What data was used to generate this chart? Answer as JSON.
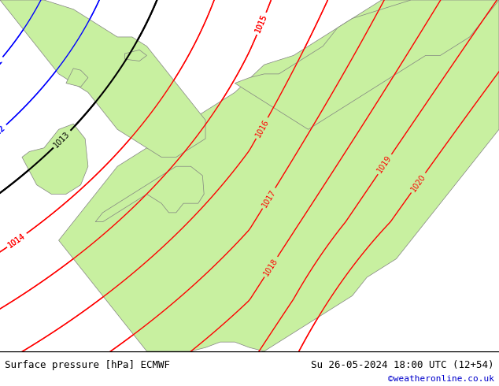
{
  "title_left": "Surface pressure [hPa] ECMWF",
  "title_right": "Su 26-05-2024 18:00 UTC (12+54)",
  "credit": "©weatheronline.co.uk",
  "credit_color": "#0000cc",
  "land_color": "#c8f0a0",
  "sea_color": "#d8d8d8",
  "border_color": "#808080",
  "map_lon_min": -12,
  "map_lon_max": 22,
  "map_lat_min": 43,
  "map_lat_max": 62
}
